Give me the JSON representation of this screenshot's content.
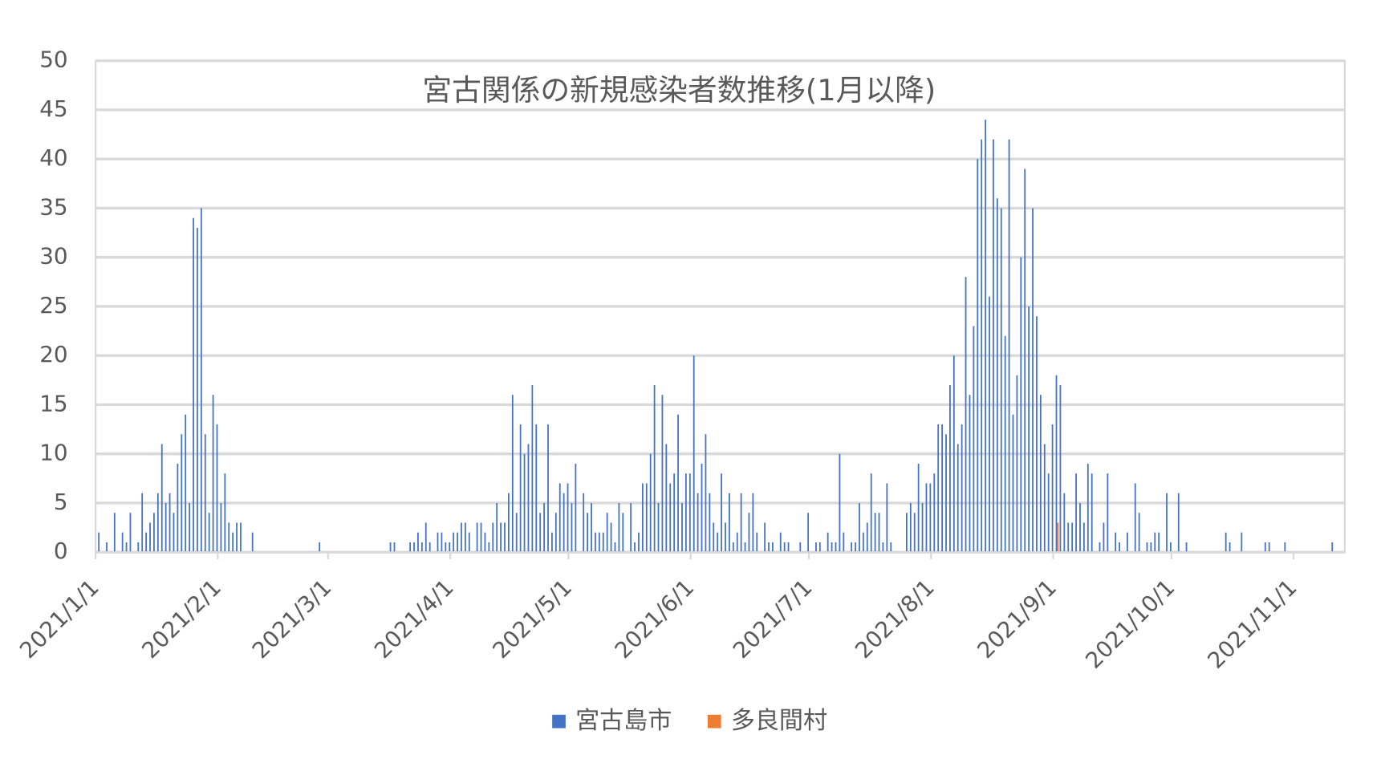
{
  "chart_data": {
    "type": "bar",
    "title": "宮古関係の新規感染者数推移(1月以降)",
    "xlim": [
      "2021/1/1",
      "2021/11/14"
    ],
    "xticks": [
      "2021/1/1",
      "2021/2/1",
      "2021/3/1",
      "2021/4/1",
      "2021/5/1",
      "2021/6/1",
      "2021/7/1",
      "2021/8/1",
      "2021/9/1",
      "2021/10/1",
      "2021/11/1"
    ],
    "ylim": [
      0,
      50
    ],
    "yticks": [
      0,
      5,
      10,
      15,
      20,
      25,
      30,
      35,
      40,
      45,
      50
    ],
    "grid": true,
    "legend": "bottom",
    "series": [
      {
        "name": "宮古島市",
        "color": "#4472c4",
        "x": [
          "2021/1/2",
          "2021/1/4",
          "2021/1/6",
          "2021/1/8",
          "2021/1/9",
          "2021/1/10",
          "2021/1/12",
          "2021/1/13",
          "2021/1/14",
          "2021/1/15",
          "2021/1/16",
          "2021/1/17",
          "2021/1/18",
          "2021/1/19",
          "2021/1/20",
          "2021/1/21",
          "2021/1/22",
          "2021/1/23",
          "2021/1/24",
          "2021/1/25",
          "2021/1/26",
          "2021/1/27",
          "2021/1/28",
          "2021/1/29",
          "2021/1/30",
          "2021/1/31",
          "2021/2/1",
          "2021/2/2",
          "2021/2/3",
          "2021/2/4",
          "2021/2/5",
          "2021/2/6",
          "2021/2/7",
          "2021/2/10",
          "2021/2/27",
          "2021/3/17",
          "2021/3/18",
          "2021/3/22",
          "2021/3/23",
          "2021/3/24",
          "2021/3/25",
          "2021/3/26",
          "2021/3/27",
          "2021/3/29",
          "2021/3/30",
          "2021/3/31",
          "2021/4/1",
          "2021/4/2",
          "2021/4/3",
          "2021/4/4",
          "2021/4/5",
          "2021/4/6",
          "2021/4/8",
          "2021/4/9",
          "2021/4/10",
          "2021/4/11",
          "2021/4/12",
          "2021/4/13",
          "2021/4/14",
          "2021/4/15",
          "2021/4/16",
          "2021/4/17",
          "2021/4/18",
          "2021/4/19",
          "2021/4/20",
          "2021/4/21",
          "2021/4/22",
          "2021/4/23",
          "2021/4/24",
          "2021/4/25",
          "2021/4/26",
          "2021/4/27",
          "2021/4/28",
          "2021/4/29",
          "2021/4/30",
          "2021/5/1",
          "2021/5/2",
          "2021/5/3",
          "2021/5/5",
          "2021/5/6",
          "2021/5/7",
          "2021/5/8",
          "2021/5/9",
          "2021/5/10",
          "2021/5/11",
          "2021/5/12",
          "2021/5/13",
          "2021/5/14",
          "2021/5/15",
          "2021/5/17",
          "2021/5/18",
          "2021/5/19",
          "2021/5/20",
          "2021/5/21",
          "2021/5/22",
          "2021/5/23",
          "2021/5/24",
          "2021/5/25",
          "2021/5/26",
          "2021/5/27",
          "2021/5/28",
          "2021/5/29",
          "2021/5/30",
          "2021/5/31",
          "2021/6/1",
          "2021/6/2",
          "2021/6/3",
          "2021/6/4",
          "2021/6/5",
          "2021/6/6",
          "2021/6/7",
          "2021/6/8",
          "2021/6/9",
          "2021/6/10",
          "2021/6/11",
          "2021/6/12",
          "2021/6/13",
          "2021/6/14",
          "2021/6/15",
          "2021/6/16",
          "2021/6/17",
          "2021/6/18",
          "2021/6/20",
          "2021/6/21",
          "2021/6/22",
          "2021/6/24",
          "2021/6/25",
          "2021/6/26",
          "2021/6/29",
          "2021/7/1",
          "2021/7/3",
          "2021/7/4",
          "2021/7/6",
          "2021/7/7",
          "2021/7/8",
          "2021/7/9",
          "2021/7/10",
          "2021/7/12",
          "2021/7/13",
          "2021/7/14",
          "2021/7/15",
          "2021/7/16",
          "2021/7/17",
          "2021/7/18",
          "2021/7/19",
          "2021/7/20",
          "2021/7/21",
          "2021/7/22",
          "2021/7/26",
          "2021/7/27",
          "2021/7/28",
          "2021/7/29",
          "2021/7/30",
          "2021/7/31",
          "2021/8/1",
          "2021/8/2",
          "2021/8/3",
          "2021/8/4",
          "2021/8/5",
          "2021/8/6",
          "2021/8/7",
          "2021/8/8",
          "2021/8/9",
          "2021/8/10",
          "2021/8/11",
          "2021/8/12",
          "2021/8/13",
          "2021/8/14",
          "2021/8/15",
          "2021/8/16",
          "2021/8/17",
          "2021/8/18",
          "2021/8/19",
          "2021/8/20",
          "2021/8/21",
          "2021/8/22",
          "2021/8/23",
          "2021/8/24",
          "2021/8/25",
          "2021/8/26",
          "2021/8/27",
          "2021/8/28",
          "2021/8/29",
          "2021/8/30",
          "2021/8/31",
          "2021/9/1",
          "2021/9/2",
          "2021/9/3",
          "2021/9/4",
          "2021/9/5",
          "2021/9/6",
          "2021/9/7",
          "2021/9/8",
          "2021/9/9",
          "2021/9/10",
          "2021/9/11",
          "2021/9/13",
          "2021/9/14",
          "2021/9/15",
          "2021/9/17",
          "2021/9/18",
          "2021/9/20",
          "2021/9/22",
          "2021/9/23",
          "2021/9/25",
          "2021/9/26",
          "2021/9/27",
          "2021/9/28",
          "2021/9/30",
          "2021/10/1",
          "2021/10/3",
          "2021/10/5",
          "2021/10/15",
          "2021/10/16",
          "2021/10/19",
          "2021/10/25",
          "2021/10/26",
          "2021/10/30",
          "2021/11/11"
        ],
        "values": [
          2,
          1,
          4,
          2,
          1,
          4,
          1,
          6,
          2,
          3,
          4,
          6,
          11,
          5,
          6,
          4,
          9,
          12,
          14,
          5,
          34,
          33,
          35,
          12,
          4,
          16,
          13,
          5,
          8,
          3,
          2,
          3,
          3,
          2,
          1,
          1,
          1,
          1,
          1,
          2,
          1,
          3,
          1,
          2,
          2,
          1,
          1,
          2,
          2,
          3,
          3,
          2,
          3,
          3,
          2,
          1,
          3,
          5,
          3,
          3,
          6,
          16,
          4,
          13,
          10,
          11,
          17,
          13,
          4,
          5,
          13,
          2,
          4,
          7,
          6,
          7,
          5,
          9,
          6,
          4,
          5,
          2,
          2,
          2,
          4,
          3,
          1,
          5,
          4,
          5,
          1,
          2,
          7,
          7,
          10,
          17,
          5,
          16,
          11,
          7,
          8,
          14,
          5,
          8,
          8,
          20,
          6,
          9,
          12,
          6,
          3,
          2,
          8,
          3,
          6,
          1,
          2,
          6,
          1,
          4,
          6,
          2,
          3,
          1,
          1,
          2,
          1,
          1,
          1,
          4,
          1,
          1,
          2,
          1,
          1,
          10,
          2,
          1,
          1,
          5,
          2,
          3,
          8,
          4,
          4,
          1,
          7,
          1,
          4,
          5,
          4,
          9,
          5,
          7,
          7,
          8,
          13,
          13,
          12,
          17,
          20,
          11,
          13,
          28,
          16,
          23,
          40,
          42,
          44,
          26,
          42,
          36,
          35,
          22,
          42,
          14,
          18,
          30,
          39,
          25,
          35,
          24,
          16,
          11,
          8,
          13,
          18,
          17,
          6,
          3,
          3,
          8,
          5,
          3,
          9,
          8,
          1,
          3,
          8,
          2,
          1,
          2,
          7,
          4,
          1,
          1,
          2,
          2,
          6,
          1,
          6,
          1,
          2,
          1,
          2,
          1,
          1,
          1,
          1
        ]
      },
      {
        "name": "多良間村",
        "color": "#ed7d31",
        "x": [
          "2021/9/2"
        ],
        "values": [
          3
        ]
      }
    ]
  }
}
